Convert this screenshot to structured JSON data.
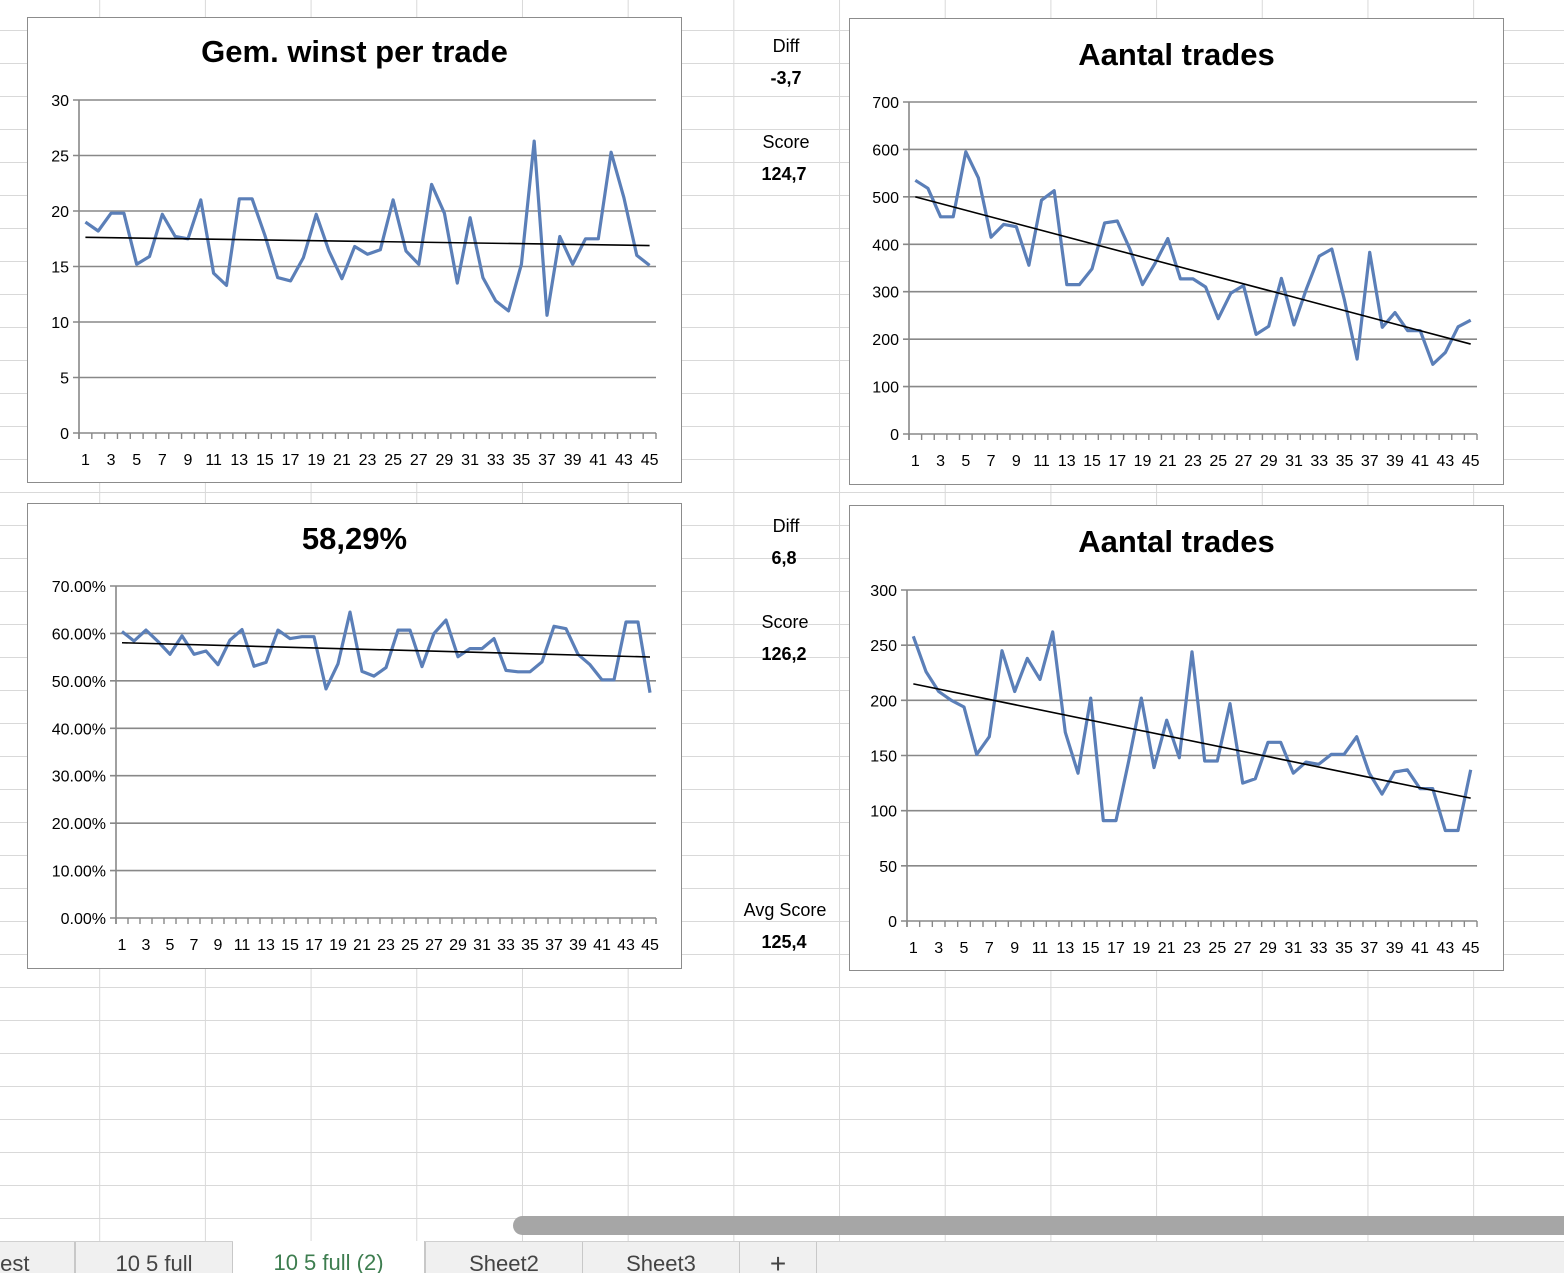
{
  "colors": {
    "series": "#5b7fb8",
    "trend": "#000000",
    "grid": "#888888",
    "active_tab": "#3d7d4f"
  },
  "middle": {
    "top": {
      "diff_label": "Diff",
      "diff_value": "-3,7",
      "score_label": "Score",
      "score_value": "124,7"
    },
    "bottom": {
      "diff_label": "Diff",
      "diff_value": "6,8",
      "score_label": "Score",
      "score_value": "126,2",
      "avg_label": "Avg Score",
      "avg_value": "125,4"
    }
  },
  "tabs": [
    {
      "label": "test"
    },
    {
      "label": "10 5 full"
    },
    {
      "label": "10 5 full (2)",
      "active": true
    },
    {
      "label": "Sheet2"
    },
    {
      "label": "Sheet3"
    },
    {
      "label": "+"
    }
  ],
  "chart_data": [
    {
      "type": "line",
      "title": "Gem. winst per trade",
      "ylim": [
        0,
        30
      ],
      "yticks": [
        0,
        5,
        10,
        15,
        20,
        25,
        30
      ],
      "ytick_labels": [
        "0",
        "5",
        "10",
        "15",
        "20",
        "25",
        "30"
      ],
      "trendline": "linear",
      "grid": true,
      "x": [
        1,
        2,
        3,
        4,
        5,
        6,
        7,
        8,
        9,
        10,
        11,
        12,
        13,
        14,
        15,
        16,
        17,
        18,
        19,
        20,
        21,
        22,
        23,
        24,
        25,
        26,
        27,
        28,
        29,
        30,
        31,
        32,
        33,
        34,
        35,
        36,
        37,
        38,
        39,
        40,
        41,
        42,
        43,
        44,
        45
      ],
      "values": [
        19,
        18.2,
        19.8,
        19.8,
        15.2,
        15.9,
        19.7,
        17.7,
        17.5,
        21,
        14.4,
        13.3,
        21.1,
        21.1,
        17.8,
        14,
        13.7,
        15.8,
        19.7,
        16.4,
        13.9,
        16.8,
        16.1,
        16.5,
        21,
        16.4,
        15.2,
        22.4,
        19.8,
        13.5,
        19.4,
        14,
        11.9,
        11,
        15.2,
        26.3,
        10.6,
        17.7,
        15.2,
        17.5,
        17.5,
        25.3,
        21.2,
        16,
        15.1
      ]
    },
    {
      "type": "line",
      "title": "Aantal trades",
      "ylim": [
        0,
        700
      ],
      "yticks": [
        0,
        100,
        200,
        300,
        400,
        500,
        600,
        700
      ],
      "ytick_labels": [
        "0",
        "100",
        "200",
        "300",
        "400",
        "500",
        "600",
        "700"
      ],
      "trendline": "linear",
      "grid": true,
      "x": [
        1,
        2,
        3,
        4,
        5,
        6,
        7,
        8,
        9,
        10,
        11,
        12,
        13,
        14,
        15,
        16,
        17,
        18,
        19,
        20,
        21,
        22,
        23,
        24,
        25,
        26,
        27,
        28,
        29,
        30,
        31,
        32,
        33,
        34,
        35,
        36,
        37,
        38,
        39,
        40,
        41,
        42,
        43,
        44,
        45
      ],
      "values": [
        535,
        518,
        458,
        458,
        595,
        540,
        415,
        442,
        437,
        356,
        493,
        513,
        315,
        315,
        348,
        445,
        449,
        390,
        315,
        360,
        412,
        327,
        327,
        310,
        243,
        297,
        313,
        210,
        227,
        328,
        230,
        307,
        375,
        390,
        282,
        158,
        383,
        225,
        256,
        218,
        218,
        147,
        172,
        226,
        240
      ]
    },
    {
      "type": "line",
      "title": "58,29%",
      "ylim": [
        0,
        0.7
      ],
      "yticks": [
        0,
        0.1,
        0.2,
        0.3,
        0.4,
        0.5,
        0.6,
        0.7
      ],
      "ytick_labels": [
        "0.00%",
        "10.00%",
        "20.00%",
        "30.00%",
        "40.00%",
        "50.00%",
        "60.00%",
        "70.00%"
      ],
      "trendline": "linear",
      "grid": true,
      "x": [
        1,
        2,
        3,
        4,
        5,
        6,
        7,
        8,
        9,
        10,
        11,
        12,
        13,
        14,
        15,
        16,
        17,
        18,
        19,
        20,
        21,
        22,
        23,
        24,
        25,
        26,
        27,
        28,
        29,
        30,
        31,
        32,
        33,
        34,
        35,
        36,
        37,
        38,
        39,
        40,
        41,
        42,
        43,
        44,
        45
      ],
      "values": [
        0.604,
        0.584,
        0.607,
        0.583,
        0.556,
        0.595,
        0.556,
        0.563,
        0.534,
        0.586,
        0.608,
        0.531,
        0.539,
        0.607,
        0.589,
        0.593,
        0.593,
        0.483,
        0.536,
        0.645,
        0.52,
        0.51,
        0.528,
        0.607,
        0.607,
        0.53,
        0.6,
        0.628,
        0.551,
        0.568,
        0.568,
        0.589,
        0.522,
        0.519,
        0.519,
        0.54,
        0.615,
        0.61,
        0.556,
        0.534,
        0.502,
        0.502,
        0.624,
        0.624,
        0.475
      ]
    },
    {
      "type": "line",
      "title": "Aantal trades",
      "ylim": [
        0,
        300
      ],
      "yticks": [
        0,
        50,
        100,
        150,
        200,
        250,
        300
      ],
      "ytick_labels": [
        "0",
        "50",
        "100",
        "150",
        "200",
        "250",
        "300"
      ],
      "trendline": "linear",
      "grid": true,
      "x": [
        1,
        2,
        3,
        4,
        5,
        6,
        7,
        8,
        9,
        10,
        11,
        12,
        13,
        14,
        15,
        16,
        17,
        18,
        19,
        20,
        21,
        22,
        23,
        24,
        25,
        26,
        27,
        28,
        29,
        30,
        31,
        32,
        33,
        34,
        35,
        36,
        37,
        38,
        39,
        40,
        41,
        42,
        43,
        44,
        45
      ],
      "values": [
        258,
        226,
        208,
        200,
        194,
        151,
        167,
        245,
        208,
        238,
        219,
        262,
        171,
        134,
        202,
        91,
        91,
        145,
        202,
        139,
        182,
        148,
        244,
        145,
        145,
        197,
        125,
        129,
        162,
        162,
        134,
        144,
        142,
        151,
        151,
        167,
        134,
        115,
        135,
        137,
        120,
        120,
        82,
        82,
        137
      ]
    }
  ]
}
